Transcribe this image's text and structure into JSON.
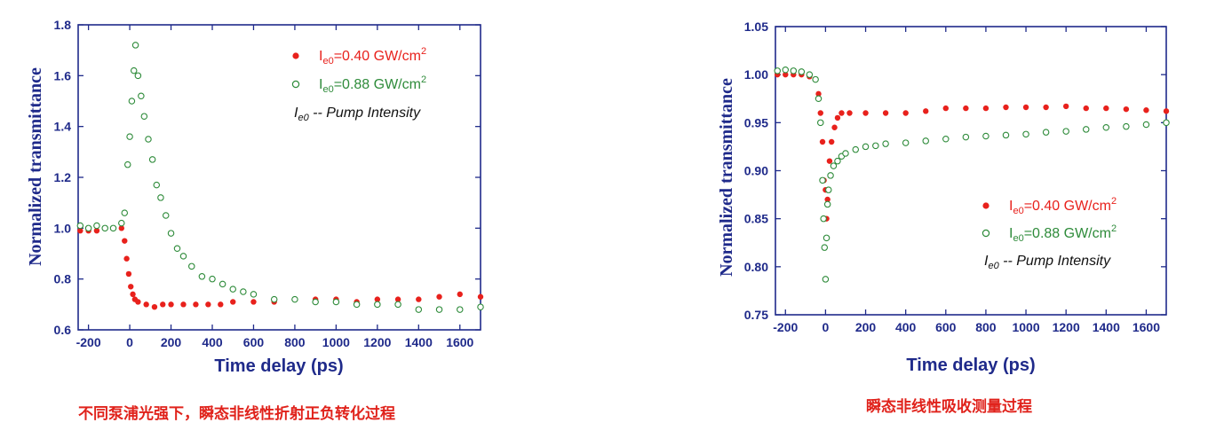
{
  "chart_data": [
    {
      "type": "scatter",
      "xlabel": "Time delay (ps)",
      "ylabel": "Normalized transmittance",
      "xlim": [
        -250,
        1700
      ],
      "ylim": [
        0.6,
        1.8
      ],
      "xticks": [
        -200,
        0,
        200,
        400,
        600,
        800,
        1000,
        1200,
        1400,
        1600
      ],
      "yticks": [
        0.6,
        0.8,
        1.0,
        1.2,
        1.4,
        1.6,
        1.8
      ],
      "ytick_labels": [
        "0.6",
        "0.8",
        "1.0",
        "1.2",
        "1.4",
        "1.6",
        "1.8"
      ],
      "legend_position": "top-right",
      "legend_note": {
        "main": "I",
        "sub": "e0",
        "text": " -- Pump Intensity"
      },
      "series": [
        {
          "name_main": "I",
          "name_sub": "e0",
          "name_rest": "=0.40 GW/cm",
          "name_sup": "2",
          "marker": "filled",
          "color": "#e8211c",
          "points": [
            [
              -240,
              0.99
            ],
            [
              -200,
              0.99
            ],
            [
              -160,
              0.99
            ],
            [
              -120,
              1.0
            ],
            [
              -80,
              1.0
            ],
            [
              -40,
              1.0
            ],
            [
              -25,
              0.95
            ],
            [
              -15,
              0.88
            ],
            [
              -5,
              0.82
            ],
            [
              5,
              0.77
            ],
            [
              15,
              0.74
            ],
            [
              25,
              0.72
            ],
            [
              40,
              0.71
            ],
            [
              80,
              0.7
            ],
            [
              120,
              0.69
            ],
            [
              160,
              0.7
            ],
            [
              200,
              0.7
            ],
            [
              260,
              0.7
            ],
            [
              320,
              0.7
            ],
            [
              380,
              0.7
            ],
            [
              440,
              0.7
            ],
            [
              500,
              0.71
            ],
            [
              600,
              0.71
            ],
            [
              700,
              0.71
            ],
            [
              800,
              0.72
            ],
            [
              900,
              0.72
            ],
            [
              1000,
              0.72
            ],
            [
              1100,
              0.71
            ],
            [
              1200,
              0.72
            ],
            [
              1300,
              0.72
            ],
            [
              1400,
              0.72
            ],
            [
              1500,
              0.73
            ],
            [
              1600,
              0.74
            ],
            [
              1700,
              0.73
            ]
          ]
        },
        {
          "name_main": "I",
          "name_sub": "e0",
          "name_rest": "=0.88 GW/cm",
          "name_sup": "2",
          "marker": "open",
          "color": "#2e8b3a",
          "points": [
            [
              -240,
              1.01
            ],
            [
              -200,
              1.0
            ],
            [
              -160,
              1.01
            ],
            [
              -120,
              1.0
            ],
            [
              -80,
              1.0
            ],
            [
              -40,
              1.02
            ],
            [
              -25,
              1.06
            ],
            [
              -10,
              1.25
            ],
            [
              0,
              1.36
            ],
            [
              10,
              1.5
            ],
            [
              20,
              1.62
            ],
            [
              28,
              1.72
            ],
            [
              40,
              1.6
            ],
            [
              55,
              1.52
            ],
            [
              70,
              1.44
            ],
            [
              90,
              1.35
            ],
            [
              110,
              1.27
            ],
            [
              130,
              1.17
            ],
            [
              150,
              1.12
            ],
            [
              175,
              1.05
            ],
            [
              200,
              0.98
            ],
            [
              230,
              0.92
            ],
            [
              260,
              0.89
            ],
            [
              300,
              0.85
            ],
            [
              350,
              0.81
            ],
            [
              400,
              0.8
            ],
            [
              450,
              0.78
            ],
            [
              500,
              0.76
            ],
            [
              550,
              0.75
            ],
            [
              600,
              0.74
            ],
            [
              700,
              0.72
            ],
            [
              800,
              0.72
            ],
            [
              900,
              0.71
            ],
            [
              1000,
              0.71
            ],
            [
              1100,
              0.7
            ],
            [
              1200,
              0.7
            ],
            [
              1300,
              0.7
            ],
            [
              1400,
              0.68
            ],
            [
              1500,
              0.68
            ],
            [
              1600,
              0.68
            ],
            [
              1700,
              0.69
            ]
          ]
        }
      ]
    },
    {
      "type": "scatter",
      "xlabel": "Time delay (ps)",
      "ylabel": "Normalized transmittance",
      "xlim": [
        -250,
        1700
      ],
      "ylim": [
        0.75,
        1.05
      ],
      "xticks": [
        -200,
        0,
        200,
        400,
        600,
        800,
        1000,
        1200,
        1400,
        1600
      ],
      "yticks": [
        0.75,
        0.8,
        0.85,
        0.9,
        0.95,
        1.0,
        1.05
      ],
      "ytick_labels": [
        "0.75",
        "0.80",
        "0.85",
        "0.90",
        "0.95",
        "1.00",
        "1.05"
      ],
      "legend_position": "bottom-right",
      "legend_note": {
        "main": "I",
        "sub": "e0",
        "text": " -- Pump Intensity"
      },
      "series": [
        {
          "name_main": "I",
          "name_sub": "e0",
          "name_rest": "=0.40 GW/cm",
          "name_sup": "2",
          "marker": "filled",
          "color": "#e8211c",
          "points": [
            [
              -240,
              1.0
            ],
            [
              -200,
              1.0
            ],
            [
              -160,
              1.0
            ],
            [
              -120,
              1.0
            ],
            [
              -80,
              0.998
            ],
            [
              -50,
              0.995
            ],
            [
              -35,
              0.98
            ],
            [
              -25,
              0.96
            ],
            [
              -15,
              0.93
            ],
            [
              -8,
              0.89
            ],
            [
              0,
              0.88
            ],
            [
              5,
              0.85
            ],
            [
              10,
              0.87
            ],
            [
              20,
              0.91
            ],
            [
              30,
              0.93
            ],
            [
              45,
              0.945
            ],
            [
              60,
              0.955
            ],
            [
              80,
              0.96
            ],
            [
              120,
              0.96
            ],
            [
              200,
              0.96
            ],
            [
              300,
              0.96
            ],
            [
              400,
              0.96
            ],
            [
              500,
              0.962
            ],
            [
              600,
              0.965
            ],
            [
              700,
              0.965
            ],
            [
              800,
              0.965
            ],
            [
              900,
              0.966
            ],
            [
              1000,
              0.966
            ],
            [
              1100,
              0.966
            ],
            [
              1200,
              0.967
            ],
            [
              1300,
              0.965
            ],
            [
              1400,
              0.965
            ],
            [
              1500,
              0.964
            ],
            [
              1600,
              0.963
            ],
            [
              1700,
              0.962
            ]
          ]
        },
        {
          "name_main": "I",
          "name_sub": "e0",
          "name_rest": "=0.88 GW/cm",
          "name_sup": "2",
          "marker": "open",
          "color": "#2e8b3a",
          "points": [
            [
              -240,
              1.004
            ],
            [
              -200,
              1.005
            ],
            [
              -160,
              1.004
            ],
            [
              -120,
              1.003
            ],
            [
              -80,
              1.0
            ],
            [
              -50,
              0.995
            ],
            [
              -35,
              0.975
            ],
            [
              -25,
              0.95
            ],
            [
              -15,
              0.89
            ],
            [
              -10,
              0.85
            ],
            [
              -5,
              0.82
            ],
            [
              0,
              0.787
            ],
            [
              5,
              0.83
            ],
            [
              10,
              0.865
            ],
            [
              15,
              0.88
            ],
            [
              25,
              0.895
            ],
            [
              40,
              0.905
            ],
            [
              60,
              0.91
            ],
            [
              80,
              0.915
            ],
            [
              100,
              0.918
            ],
            [
              150,
              0.922
            ],
            [
              200,
              0.925
            ],
            [
              250,
              0.926
            ],
            [
              300,
              0.928
            ],
            [
              400,
              0.929
            ],
            [
              500,
              0.931
            ],
            [
              600,
              0.933
            ],
            [
              700,
              0.935
            ],
            [
              800,
              0.936
            ],
            [
              900,
              0.937
            ],
            [
              1000,
              0.938
            ],
            [
              1100,
              0.94
            ],
            [
              1200,
              0.941
            ],
            [
              1300,
              0.943
            ],
            [
              1400,
              0.945
            ],
            [
              1500,
              0.946
            ],
            [
              1600,
              0.948
            ],
            [
              1700,
              0.95
            ]
          ]
        }
      ]
    }
  ],
  "captions": [
    "不同泵浦光强下，瞬态非线性折射正负转化过程",
    "瞬态非线性吸收测量过程"
  ]
}
